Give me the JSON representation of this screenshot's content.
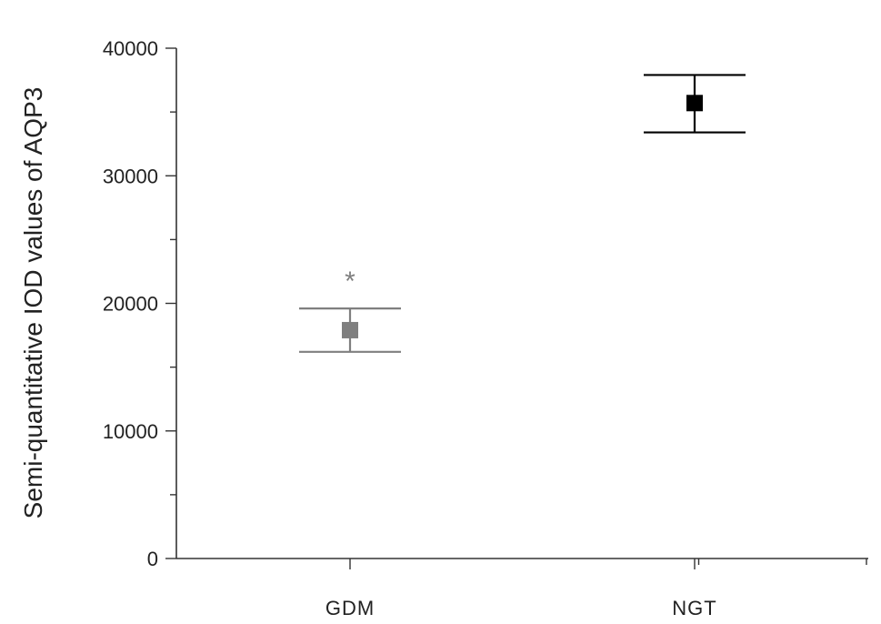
{
  "chart_data": {
    "type": "scatter",
    "ylabel": "Semi-quantitative IOD values of AQP3",
    "xlabel": "",
    "categories": [
      "GDM",
      "NGT"
    ],
    "ylim": [
      0,
      40000
    ],
    "yticks": [
      0,
      10000,
      20000,
      30000,
      40000
    ],
    "ytick_labels": [
      "0",
      "10000",
      "20000",
      "30000",
      "40000"
    ],
    "grid": false,
    "points": [
      {
        "category": "GDM",
        "mean": 17900,
        "err_low": 16200,
        "err_high": 19600,
        "color": "#7f7f7f",
        "annotation": "*"
      },
      {
        "category": "NGT",
        "mean": 35700,
        "err_low": 33400,
        "err_high": 37900,
        "color": "#000000",
        "annotation": ""
      }
    ]
  }
}
